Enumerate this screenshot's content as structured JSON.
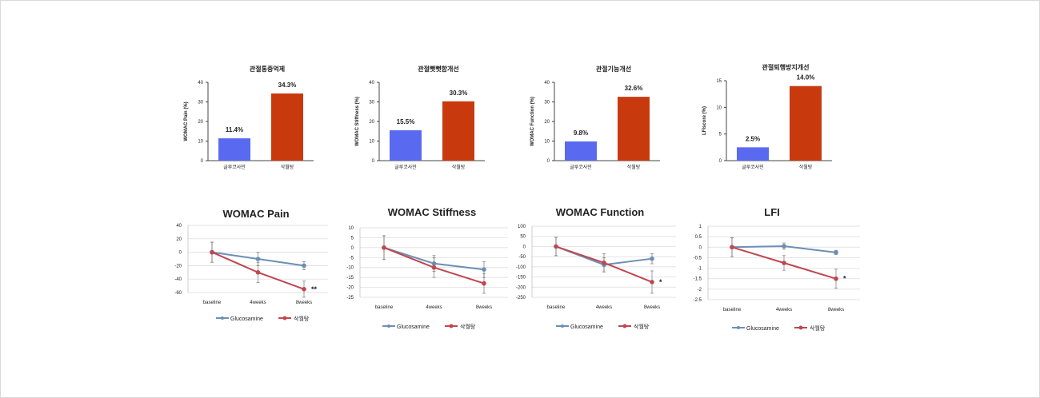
{
  "colors": {
    "bar_blue": "#5a6af0",
    "bar_red": "#c83a0e",
    "line_blue": "#6b8fb4",
    "line_red": "#c0464f",
    "grid": "#d9d9d9"
  },
  "chart_data": [
    {
      "type": "bar",
      "title": "관절통증억제",
      "ylabel": "WOMAC Pain (%)",
      "ylim": [
        0,
        40
      ],
      "yticks": [
        "0",
        "10",
        "20",
        "30",
        "40"
      ],
      "categories": [
        "글루코사민",
        "삭월탕"
      ],
      "values": [
        11.4,
        34.3
      ],
      "labels": [
        "11.4%",
        "34.3%"
      ]
    },
    {
      "type": "bar",
      "title": "관절뻣뻣함개선",
      "ylabel": "WOMAC Stiffness (%)",
      "ylim": [
        0,
        40
      ],
      "yticks": [
        "0",
        "10",
        "20",
        "30",
        "40"
      ],
      "categories": [
        "글루코사민",
        "삭월탕"
      ],
      "values": [
        15.5,
        30.3
      ],
      "labels": [
        "15.5%",
        "30.3%"
      ]
    },
    {
      "type": "bar",
      "title": "관절기능개선",
      "ylabel": "WOMAC Function (%)",
      "ylim": [
        0,
        40
      ],
      "yticks": [
        "0",
        "10",
        "20",
        "30",
        "40"
      ],
      "categories": [
        "글루코사민",
        "삭월탕"
      ],
      "values": [
        9.8,
        32.6
      ],
      "labels": [
        "9.8%",
        "32.6%"
      ]
    },
    {
      "type": "bar",
      "title": "관절퇴행방지개선",
      "ylabel": "LFIscore (%)",
      "ylim": [
        0,
        15
      ],
      "yticks": [
        "0",
        "5",
        "10",
        "15"
      ],
      "categories": [
        "글루코사민",
        "삭월탕"
      ],
      "values": [
        2.5,
        14.0
      ],
      "labels": [
        "2.5%",
        "14.0%"
      ]
    },
    {
      "type": "line",
      "title": "WOMAC  Pain",
      "categories": [
        "baseline",
        "4weeks",
        "8weeks"
      ],
      "ylim": [
        -60,
        40
      ],
      "yticks": [
        "40",
        "20",
        "0",
        "-20",
        "-40",
        "-60"
      ],
      "series": [
        {
          "name": "Glucosamine",
          "values": [
            0,
            -10,
            -20
          ],
          "err": [
            15,
            10,
            6
          ]
        },
        {
          "name": "삭월탕",
          "values": [
            0,
            -30,
            -55
          ],
          "err": [
            15,
            15,
            12
          ]
        }
      ],
      "marker": "**"
    },
    {
      "type": "line",
      "title": "WOMAC  Stiffness",
      "categories": [
        "baseline",
        "4weeks",
        "8weeks"
      ],
      "ylim": [
        -25,
        10
      ],
      "yticks": [
        "10",
        "5",
        "0",
        "-5",
        "-10",
        "-15",
        "-20",
        "-25"
      ],
      "series": [
        {
          "name": "Glucosamine",
          "values": [
            0,
            -8,
            -11
          ],
          "err": [
            6,
            4,
            4
          ]
        },
        {
          "name": "삭월탕",
          "values": [
            0,
            -10,
            -18
          ],
          "err": [
            6,
            5,
            5
          ]
        }
      ],
      "marker": ""
    },
    {
      "type": "line",
      "title": "WOMAC  Function",
      "categories": [
        "baseline",
        "4weeks",
        "8weeks"
      ],
      "ylim": [
        -250,
        100
      ],
      "yticks": [
        "100",
        "50",
        "0",
        "-50",
        "-100",
        "-150",
        "-200",
        "-250"
      ],
      "series": [
        {
          "name": "Glucosamine",
          "values": [
            0,
            -90,
            -60
          ],
          "err": [
            45,
            35,
            25
          ]
        },
        {
          "name": "삭월탕",
          "values": [
            0,
            -80,
            -175
          ],
          "err": [
            45,
            45,
            55
          ]
        }
      ],
      "marker": "*"
    },
    {
      "type": "line",
      "title": "LFI",
      "categories": [
        "baseline",
        "4weeks",
        "8weeks"
      ],
      "ylim": [
        -2.5,
        1
      ],
      "yticks": [
        "1",
        "0.5",
        "0",
        "-0.5",
        "-1",
        "-1.5",
        "-2",
        "-2.5"
      ],
      "series": [
        {
          "name": "Glucosamine",
          "values": [
            0,
            0.05,
            -0.25
          ],
          "err": [
            0.45,
            0.15,
            0.1
          ]
        },
        {
          "name": "삭월탕",
          "values": [
            0,
            -0.75,
            -1.5
          ],
          "err": [
            0.45,
            0.35,
            0.45
          ]
        }
      ],
      "marker": "*"
    }
  ]
}
